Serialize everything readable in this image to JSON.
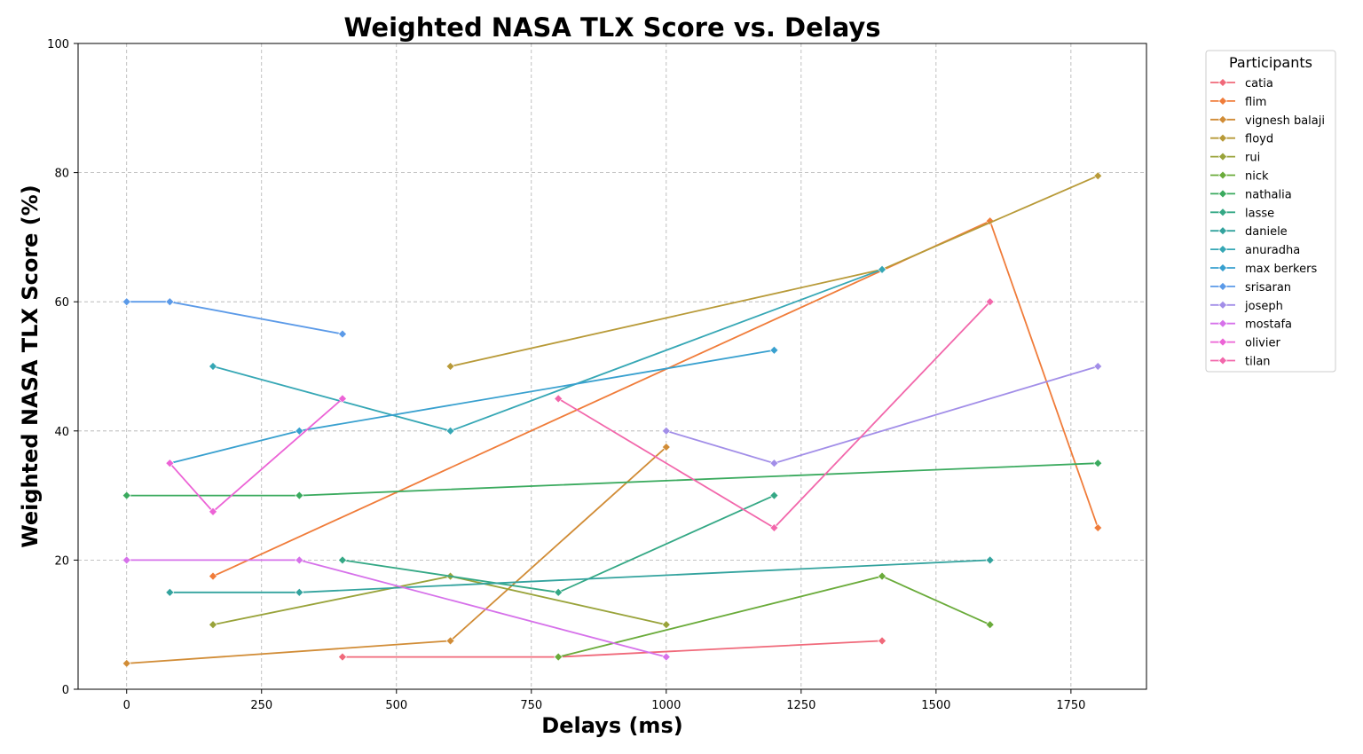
{
  "chart_data": {
    "type": "line",
    "title": "Weighted NASA TLX Score vs. Delays",
    "xlabel": "Delays (ms)",
    "ylabel": "Weighted NASA TLX Score (%)",
    "xlim": [
      -90,
      1890
    ],
    "ylim": [
      0,
      100
    ],
    "xticks": [
      0,
      250,
      500,
      750,
      1000,
      1250,
      1500,
      1750
    ],
    "yticks": [
      0,
      20,
      40,
      60,
      80,
      100
    ],
    "grid": true,
    "marker": "diamond",
    "legend_title": "Participants",
    "legend_position": "outside-top-right",
    "series": [
      {
        "name": "catia",
        "color": "#f0697a",
        "points": [
          [
            400,
            5
          ],
          [
            800,
            5
          ],
          [
            1400,
            7.5
          ]
        ]
      },
      {
        "name": "flim",
        "color": "#f07c3a",
        "points": [
          [
            160,
            17.5
          ],
          [
            1600,
            72.5
          ],
          [
            1800,
            25
          ]
        ]
      },
      {
        "name": "vignesh balaji",
        "color": "#d18c36",
        "points": [
          [
            0,
            4
          ],
          [
            600,
            7.5
          ],
          [
            1000,
            37.5
          ]
        ]
      },
      {
        "name": "floyd",
        "color": "#b89a38",
        "points": [
          [
            600,
            50
          ],
          [
            1400,
            65
          ],
          [
            1800,
            79.5
          ]
        ]
      },
      {
        "name": "rui",
        "color": "#99a33a",
        "points": [
          [
            160,
            10
          ],
          [
            600,
            17.5
          ],
          [
            1000,
            10
          ]
        ]
      },
      {
        "name": "nick",
        "color": "#6aab3a",
        "points": [
          [
            800,
            5
          ],
          [
            1400,
            17.5
          ],
          [
            1600,
            10
          ]
        ]
      },
      {
        "name": "nathalia",
        "color": "#3aaa5e",
        "points": [
          [
            0,
            30
          ],
          [
            320,
            30
          ],
          [
            1800,
            35
          ]
        ]
      },
      {
        "name": "lasse",
        "color": "#34a885",
        "points": [
          [
            400,
            20
          ],
          [
            800,
            15
          ],
          [
            1200,
            30
          ]
        ]
      },
      {
        "name": "daniele",
        "color": "#33a39e",
        "points": [
          [
            80,
            15
          ],
          [
            320,
            15
          ],
          [
            1600,
            20
          ]
        ]
      },
      {
        "name": "anuradha",
        "color": "#36a7b5",
        "points": [
          [
            160,
            50
          ],
          [
            600,
            40
          ],
          [
            1400,
            65
          ]
        ]
      },
      {
        "name": "max berkers",
        "color": "#38a0cf",
        "points": [
          [
            80,
            35
          ],
          [
            320,
            40
          ],
          [
            1200,
            52.5
          ]
        ]
      },
      {
        "name": "srisaran",
        "color": "#5b9ae8",
        "points": [
          [
            0,
            60
          ],
          [
            80,
            60
          ],
          [
            400,
            55
          ]
        ]
      },
      {
        "name": "joseph",
        "color": "#a28ee8",
        "points": [
          [
            1000,
            40
          ],
          [
            1200,
            35
          ],
          [
            1800,
            50
          ]
        ]
      },
      {
        "name": "mostafa",
        "color": "#d671ea",
        "points": [
          [
            0,
            20
          ],
          [
            320,
            20
          ],
          [
            1000,
            5
          ]
        ]
      },
      {
        "name": "olivier",
        "color": "#ec63d6",
        "points": [
          [
            80,
            35
          ],
          [
            160,
            27.5
          ],
          [
            400,
            45
          ]
        ]
      },
      {
        "name": "tilan",
        "color": "#f267ab",
        "points": [
          [
            800,
            45
          ],
          [
            1200,
            25
          ],
          [
            1600,
            60
          ]
        ]
      }
    ]
  }
}
